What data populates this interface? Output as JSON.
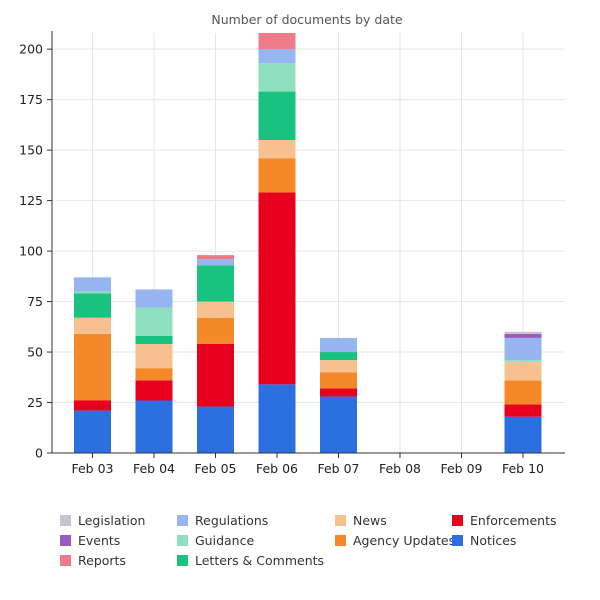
{
  "chart_data": {
    "type": "bar",
    "stacked": true,
    "title": "Number of documents by date",
    "xlabel": "",
    "ylabel": "",
    "ylim": [
      0,
      208
    ],
    "yticks": [
      0,
      25,
      50,
      75,
      100,
      125,
      150,
      175,
      200
    ],
    "grid": true,
    "legend_position": "bottom",
    "categories": [
      "Feb 03",
      "Feb 04",
      "Feb 05",
      "Feb 06",
      "Feb 07",
      "Feb 08",
      "Feb 09",
      "Feb 10"
    ],
    "series": [
      {
        "name": "Notices",
        "color": "#2b6fe0",
        "values": [
          21,
          26,
          23,
          34,
          28,
          0,
          0,
          18
        ]
      },
      {
        "name": "Enforcements",
        "color": "#e8001f",
        "values": [
          5,
          10,
          31,
          95,
          4,
          0,
          0,
          6
        ]
      },
      {
        "name": "Agency Updates",
        "color": "#f5892a",
        "values": [
          33,
          6,
          13,
          17,
          8,
          0,
          0,
          12
        ]
      },
      {
        "name": "News",
        "color": "#f7c08f",
        "values": [
          8,
          12,
          8,
          9,
          6,
          0,
          0,
          9
        ]
      },
      {
        "name": "Letters & Comments",
        "color": "#1ac27f",
        "values": [
          12,
          4,
          18,
          24,
          4,
          0,
          0,
          0
        ]
      },
      {
        "name": "Guidance",
        "color": "#8ee0c0",
        "values": [
          1,
          14,
          0,
          14,
          0,
          0,
          0,
          1
        ]
      },
      {
        "name": "Regulations",
        "color": "#97b5f0",
        "values": [
          7,
          9,
          3,
          7,
          7,
          0,
          0,
          11
        ]
      },
      {
        "name": "Reports",
        "color": "#f07b88",
        "values": [
          0,
          0,
          2,
          8,
          0,
          0,
          0,
          0
        ]
      },
      {
        "name": "Events",
        "color": "#9a5bbf",
        "values": [
          0,
          0,
          0,
          0,
          0,
          0,
          0,
          2
        ]
      },
      {
        "name": "Legislation",
        "color": "#c9c2cf",
        "values": [
          0,
          0,
          0,
          0,
          0,
          0,
          0,
          1
        ]
      }
    ],
    "legend_order": [
      "Legislation",
      "Events",
      "Reports",
      "Regulations",
      "Guidance",
      "Letters & Comments",
      "News",
      "Agency Updates",
      "Enforcements",
      "Notices"
    ]
  }
}
